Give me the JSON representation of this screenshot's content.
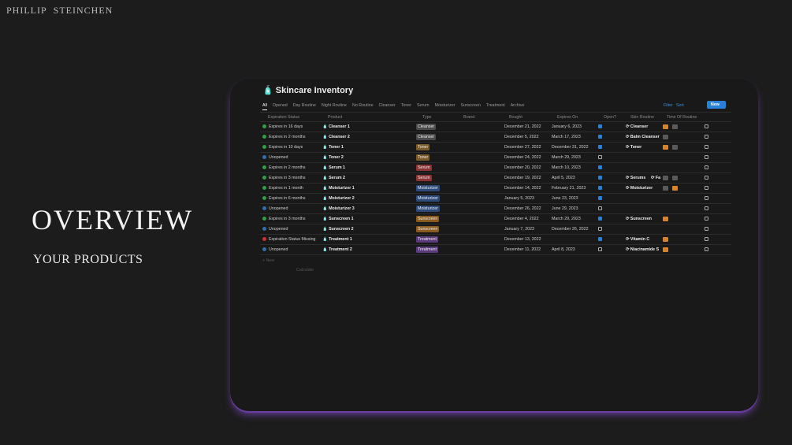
{
  "brand": {
    "first": "PHILLIP",
    "last": "STEINCHEN"
  },
  "slide": {
    "title": "OVERVIEW",
    "subtitle": "YOUR PRODUCTS"
  },
  "page": {
    "title": "Skincare Inventory",
    "tabs": [
      "All",
      "Opened",
      "Day Routine",
      "Night Routine",
      "No Routine",
      "Cleanser",
      "Toner",
      "Serum",
      "Moisturizer",
      "Sunscreen",
      "Treatment",
      "Archive"
    ],
    "actions": [
      "Filter",
      "Sort"
    ],
    "new_button": "New",
    "columns": [
      "Expiration Status",
      "Product",
      "Type",
      "Brand",
      "Bought",
      "Expires On",
      "Open?",
      "Skin Routine",
      "Time Of Routine"
    ],
    "rows": [
      {
        "status": "Expires in 16 days",
        "status_color": "#2ea043",
        "product": "Cleanser 1",
        "type": "Cleanser",
        "type_color": "#4a4a4a",
        "bought": "December 21, 2022",
        "expires": "January 6, 2023",
        "open": true,
        "routine": [
          "Cleanser"
        ],
        "time": [
          "#d9822b",
          "#5a5a5a"
        ]
      },
      {
        "status": "Expires in 2 months",
        "status_color": "#2ea043",
        "product": "Cleanser 2",
        "type": "Cleanser",
        "type_color": "#4a4a4a",
        "bought": "December 5, 2022",
        "expires": "March 17, 2023",
        "open": true,
        "routine": [
          "Balm Cleanser"
        ],
        "time": [
          "#5a5a5a"
        ]
      },
      {
        "status": "Expires in 10 days",
        "status_color": "#2ea043",
        "product": "Toner 1",
        "type": "Toner",
        "type_color": "#7a5a2a",
        "bought": "December 27, 2022",
        "expires": "December 31, 2022",
        "open": true,
        "routine": [
          "Toner"
        ],
        "time": [
          "#d9822b",
          "#5a5a5a"
        ]
      },
      {
        "status": "Unopened",
        "status_color": "#2f6fb0",
        "product": "Toner 2",
        "type": "Toner",
        "type_color": "#7a5a2a",
        "bought": "December 24, 2022",
        "expires": "March 29, 2023",
        "open": false,
        "routine": [],
        "time": []
      },
      {
        "status": "Expires in 2 months",
        "status_color": "#2ea043",
        "product": "Serum 1",
        "type": "Serum",
        "type_color": "#8a3434",
        "bought": "December 20, 2022",
        "expires": "March 10, 2023",
        "open": true,
        "routine": [],
        "time": []
      },
      {
        "status": "Expires in 3 months",
        "status_color": "#2ea043",
        "product": "Serum 2",
        "type": "Serum",
        "type_color": "#8a3434",
        "bought": "December 19, 2022",
        "expires": "April 5, 2023",
        "open": true,
        "routine": [
          "Serums",
          "Fa"
        ],
        "time": [
          "#5a5a5a",
          "#5a5a5a"
        ]
      },
      {
        "status": "Expires in 1 month",
        "status_color": "#2ea043",
        "product": "Moisturizer 1",
        "type": "Moisturizer",
        "type_color": "#2c4a7a",
        "bought": "December 14, 2022",
        "expires": "February 21, 2023",
        "open": true,
        "routine": [
          "Moisturizer"
        ],
        "time": [
          "#5a5a5a",
          "#d9822b"
        ]
      },
      {
        "status": "Expires in 6 months",
        "status_color": "#2ea043",
        "product": "Moisturizer 2",
        "type": "Moisturizer",
        "type_color": "#2c4a7a",
        "bought": "January 5, 2023",
        "expires": "June 23, 2023",
        "open": true,
        "routine": [],
        "time": []
      },
      {
        "status": "Unopened",
        "status_color": "#2f6fb0",
        "product": "Moisturizer 3",
        "type": "Moisturizer",
        "type_color": "#2c4a7a",
        "bought": "December 26, 2022",
        "expires": "June 29, 2023",
        "open": false,
        "routine": [],
        "time": []
      },
      {
        "status": "Expires in 3 months",
        "status_color": "#2ea043",
        "product": "Sunscreen 1",
        "type": "Sunscreen",
        "type_color": "#8a5a1e",
        "bought": "December 4, 2022",
        "expires": "March 29, 2023",
        "open": true,
        "routine": [
          "Sunscreen"
        ],
        "time": [
          "#d9822b"
        ]
      },
      {
        "status": "Unopened",
        "status_color": "#2f6fb0",
        "product": "Sunscreen 2",
        "type": "Sunscreen",
        "type_color": "#8a5a1e",
        "bought": "January 7, 2023",
        "expires": "December 26, 2022",
        "open": false,
        "routine": [],
        "time": []
      },
      {
        "status": "Expiration Status Missing",
        "status_color": "#d03030",
        "product": "Treatment 1",
        "type": "Treatment",
        "type_color": "#5a3a7a",
        "bought": "December 13, 2022",
        "expires": "",
        "open": true,
        "routine": [
          "Vitamin C"
        ],
        "time": [
          "#d9822b"
        ]
      },
      {
        "status": "Unopened",
        "status_color": "#2f6fb0",
        "product": "Treatment 2",
        "type": "Treatment",
        "type_color": "#5a3a7a",
        "bought": "December 11, 2022",
        "expires": "April 8, 2023",
        "open": false,
        "routine": [
          "Niacinamide S"
        ],
        "time": [
          "#d9822b"
        ]
      }
    ],
    "add_row": "New",
    "calculate": "Calculate"
  }
}
